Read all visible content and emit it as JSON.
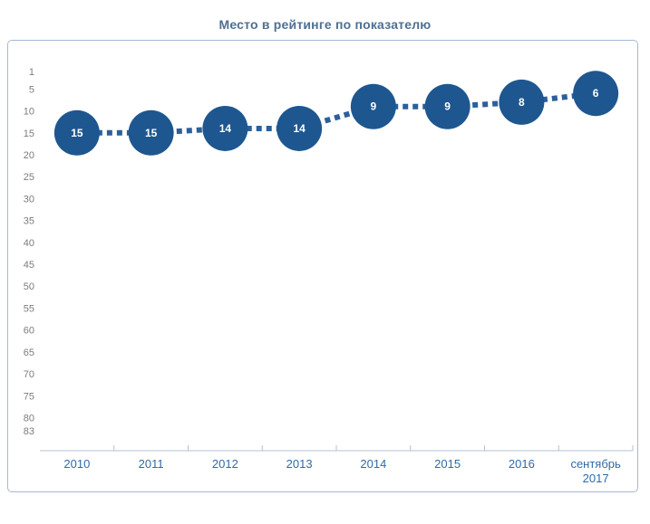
{
  "chart_data": {
    "type": "line",
    "title": "Место в рейтинге по показателю",
    "categories": [
      "2010",
      "2011",
      "2012",
      "2013",
      "2014",
      "2015",
      "2016",
      "сентябрь\n2017"
    ],
    "values": [
      15,
      15,
      14,
      14,
      9,
      9,
      8,
      6
    ],
    "xlabel": "",
    "ylabel": "",
    "y_ticks": [
      1,
      5,
      10,
      15,
      20,
      25,
      30,
      35,
      40,
      45,
      50,
      55,
      60,
      65,
      70,
      75,
      80,
      83
    ],
    "ylim": [
      1,
      83
    ],
    "y_axis_inverted": true,
    "grid": false,
    "legend_position": "none",
    "line_style": "dotted",
    "marker": "circle-with-value",
    "colors": {
      "marker_fill": "#1e578f",
      "line": "#2b609b",
      "value_text": "#ffffff",
      "axis": "#b0c2d6",
      "y_tick_labels": "#7c7c7c",
      "x_tick_labels": "#2f6ba8",
      "title": "#4e7093",
      "panel_border": "#a6b8d4",
      "background": "#ffffff"
    }
  }
}
